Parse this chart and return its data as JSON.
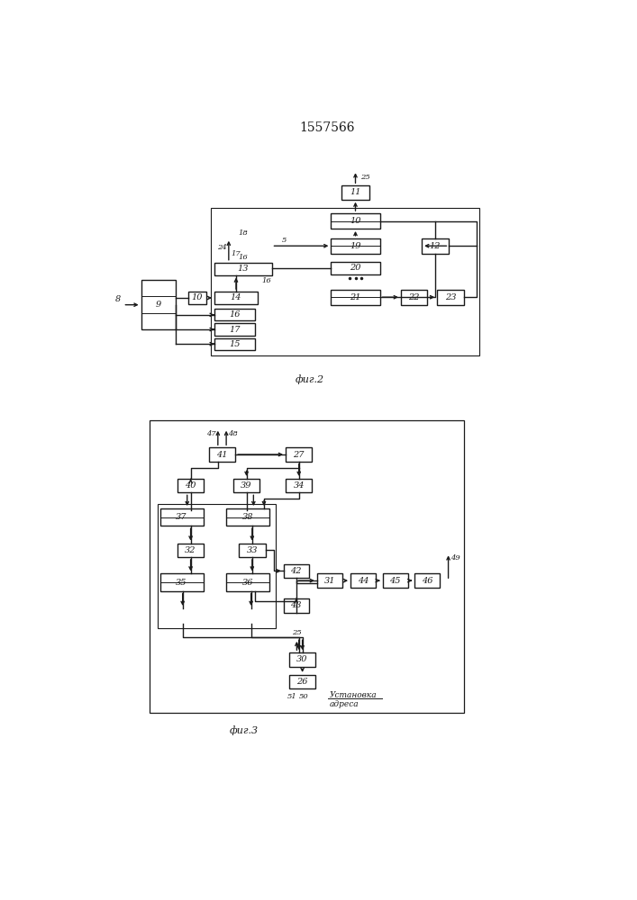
{
  "title": "1557566",
  "fig2_label": "фиг.2",
  "fig3_label": "фиг.3",
  "address_label": "Установка\nадреса",
  "bg_color": "#ffffff",
  "line_color": "#1a1a1a"
}
